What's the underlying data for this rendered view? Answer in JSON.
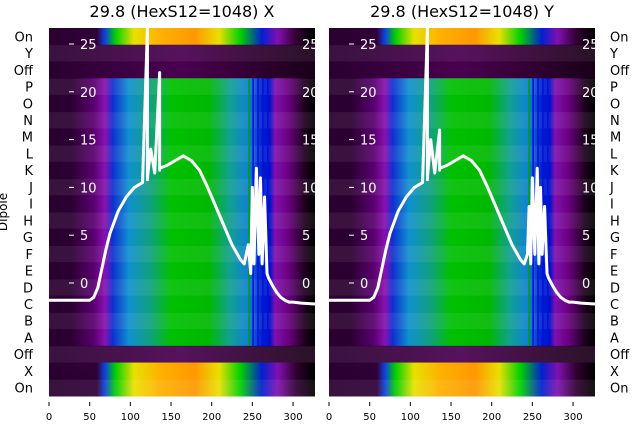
{
  "chart_data": [
    {
      "type": "heatmap",
      "title": "29.8 (HexS12=1048) X",
      "ylabel": "Dipole",
      "row_labels": [
        "On",
        "Y",
        "Off",
        "P",
        "O",
        "N",
        "M",
        "L",
        "K",
        "J",
        "I",
        "H",
        "G",
        "F",
        "E",
        "D",
        "C",
        "B",
        "A",
        "Off",
        "X",
        "On"
      ],
      "xticks": [
        "0",
        "50",
        "100",
        "150",
        "200",
        "250",
        "300"
      ],
      "xlim": [
        0,
        327
      ],
      "inner_yticks": [
        "25",
        "20",
        "15",
        "10",
        "5",
        "0"
      ],
      "ylim_line": [
        -11.7,
        26.8
      ],
      "line": {
        "x": [
          0,
          50,
          55,
          60,
          65,
          70,
          75,
          85,
          95,
          105,
          115,
          121,
          121,
          121,
          125,
          130,
          136,
          136,
          136,
          145,
          155,
          165,
          175,
          185,
          195,
          205,
          215,
          225,
          235,
          240,
          245,
          248,
          250,
          252,
          255,
          258,
          260,
          262,
          265,
          268,
          270,
          275,
          280,
          285,
          290,
          295,
          300,
          310,
          327
        ],
        "y": [
          -1.8,
          -1.8,
          -1.5,
          -0.5,
          1.5,
          3.5,
          5.2,
          7.5,
          9,
          10,
          10.5,
          28,
          10.8,
          11,
          14,
          11.5,
          22,
          11.8,
          12,
          12.3,
          12.8,
          13.3,
          12.8,
          11.8,
          10,
          8,
          6,
          4,
          2.5,
          2,
          4,
          1,
          10,
          2,
          12,
          3,
          11,
          2,
          9,
          1,
          0.5,
          -0.3,
          -1,
          -1.5,
          -1.8,
          -2,
          -2,
          -2.1,
          -2.2
        ]
      }
    },
    {
      "type": "heatmap",
      "title": "29.8 (HexS12=1048) Y",
      "row_labels": [
        "On",
        "Y",
        "Off",
        "P",
        "O",
        "N",
        "M",
        "L",
        "K",
        "J",
        "I",
        "H",
        "G",
        "F",
        "E",
        "D",
        "C",
        "B",
        "A",
        "Off",
        "X",
        "On"
      ],
      "xticks": [
        "0",
        "50",
        "100",
        "150",
        "200",
        "250",
        "300"
      ],
      "xlim": [
        0,
        327
      ],
      "inner_yticks": [
        "25",
        "20",
        "15",
        "10",
        "5",
        "0"
      ],
      "line": {
        "x": [
          0,
          50,
          55,
          60,
          65,
          70,
          75,
          85,
          95,
          105,
          115,
          121,
          121,
          121,
          125,
          130,
          136,
          136,
          136,
          145,
          155,
          165,
          175,
          185,
          195,
          205,
          215,
          225,
          235,
          240,
          244,
          246,
          248,
          250,
          253,
          256,
          258,
          260,
          262,
          265,
          268,
          270,
          275,
          280,
          285,
          290,
          295,
          300,
          310,
          327
        ],
        "y": [
          -1.8,
          -1.8,
          -1.5,
          -0.5,
          1.5,
          3.5,
          5.2,
          7.5,
          9,
          10,
          10.5,
          27,
          10.8,
          11,
          15,
          11.5,
          16,
          11.8,
          12,
          12.3,
          12.8,
          13.3,
          12.8,
          11.8,
          10,
          8,
          6,
          4,
          2.5,
          2,
          3,
          8,
          2,
          11,
          3,
          12,
          2,
          10,
          3,
          8,
          1,
          0.5,
          -0.3,
          -1,
          -1.5,
          -1.8,
          -2,
          -2,
          -2.1,
          -2.2
        ]
      }
    }
  ]
}
